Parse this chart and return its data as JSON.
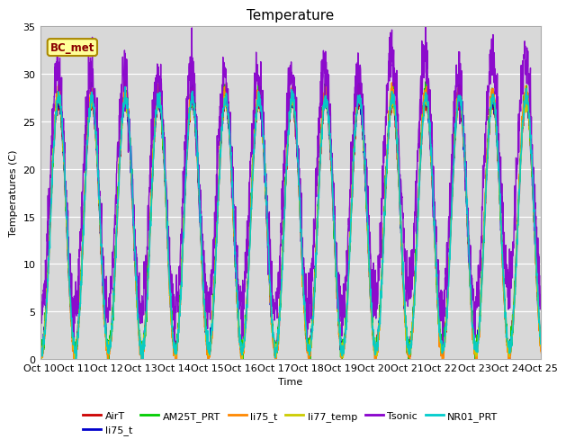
{
  "title": "Temperature",
  "xlabel": "Time",
  "ylabel": "Temperatures (C)",
  "ylim": [
    0,
    35
  ],
  "series": [
    {
      "name": "AirT",
      "color": "#cc0000",
      "lw": 1.0
    },
    {
      "name": "li75_t",
      "color": "#0000cc",
      "lw": 1.0
    },
    {
      "name": "AM25T_PRT",
      "color": "#00cc00",
      "lw": 1.0
    },
    {
      "name": "li75_t",
      "color": "#ff8800",
      "lw": 1.0
    },
    {
      "name": "li77_temp",
      "color": "#cccc00",
      "lw": 1.0
    },
    {
      "name": "Tsonic",
      "color": "#8800cc",
      "lw": 1.0
    },
    {
      "name": "NR01_PRT",
      "color": "#00cccc",
      "lw": 1.2
    }
  ],
  "annotation_text": "BC_met",
  "fig_bg": "#ffffff",
  "plot_bg": "#d8d8d8",
  "title_fontsize": 11,
  "axis_fontsize": 8,
  "legend_fontsize": 8
}
